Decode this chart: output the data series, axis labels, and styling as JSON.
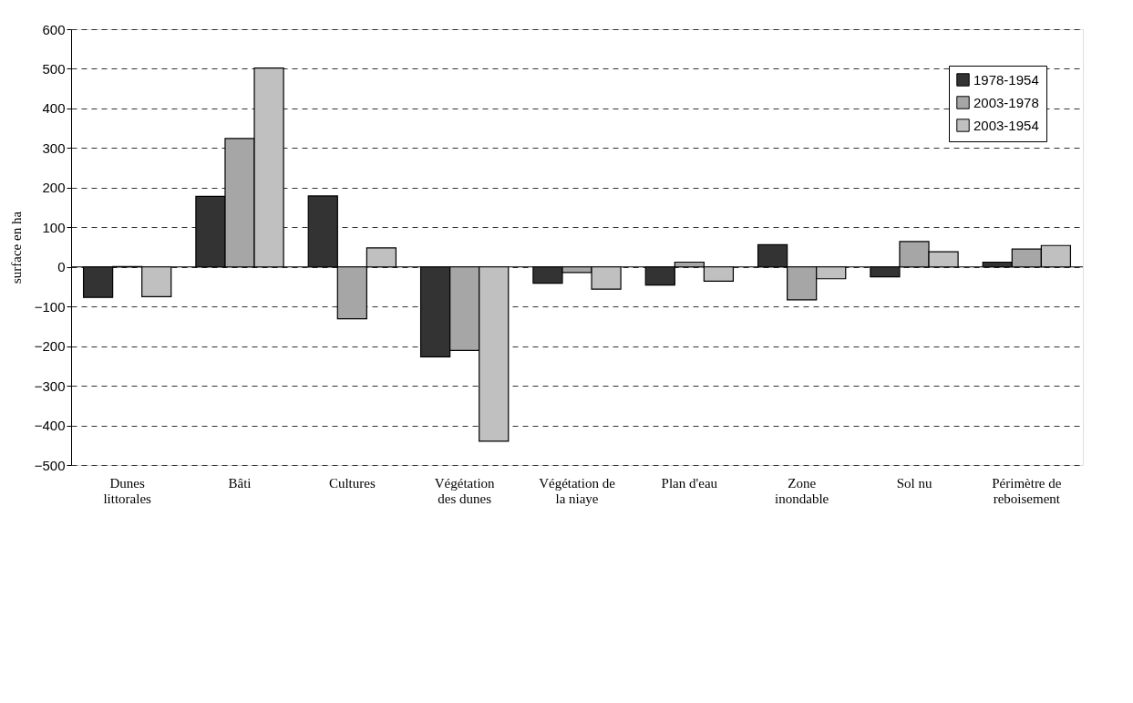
{
  "chart_data": {
    "type": "bar",
    "ylabel": "surface en ha",
    "categories": [
      "Dunes littorales",
      "Bâti",
      "Cultures",
      "Végétation des dunes",
      "Végétation de la niaye",
      "Plan d'eau",
      "Zone inondable",
      "Sol nu",
      "Périmètre de reboisement"
    ],
    "series": [
      {
        "name": "1978-1954",
        "color": "#333333",
        "values": [
          -77,
          178,
          179,
          -227,
          -41,
          -46,
          56,
          -25,
          12
        ]
      },
      {
        "name": "2003-1978",
        "color": "#a6a6a6",
        "values": [
          1,
          324,
          -131,
          -211,
          -14,
          12,
          -83,
          64,
          45
        ]
      },
      {
        "name": "2003-1954",
        "color": "#c0c0c0",
        "values": [
          -75,
          502,
          48,
          -440,
          -56,
          -36,
          -30,
          38,
          54
        ]
      }
    ],
    "ylim": [
      -500,
      600
    ],
    "yticks": [
      -500,
      -400,
      -300,
      -200,
      -100,
      0,
      100,
      200,
      300,
      400,
      500,
      600
    ],
    "grid": "y",
    "legend": "top right"
  }
}
